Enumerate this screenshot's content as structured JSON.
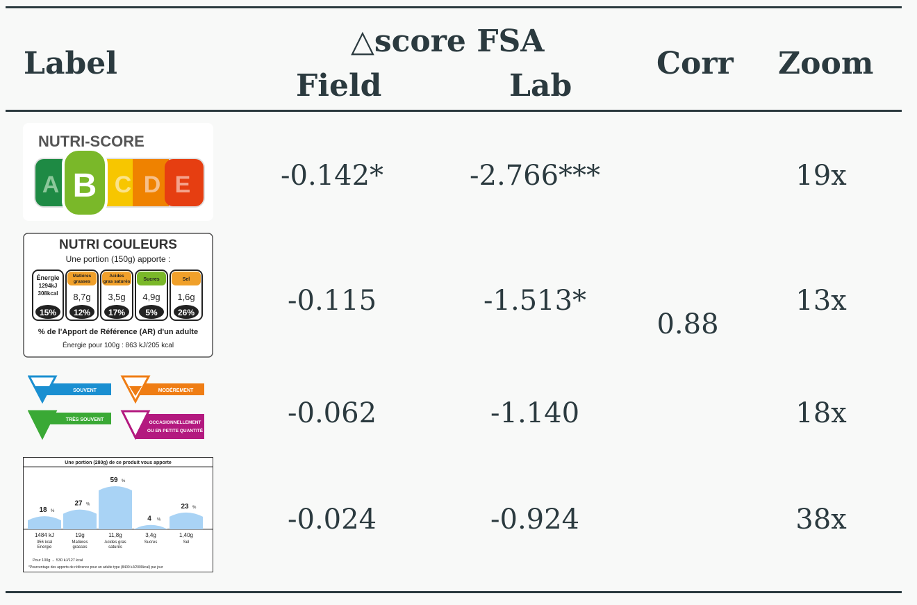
{
  "header": {
    "label": "Label",
    "group": "△score FSA",
    "field": "Field",
    "lab": "Lab",
    "corr": "Corr",
    "zoom": "Zoom"
  },
  "corr_value": "0.88",
  "rows": [
    {
      "field": "-0.142*",
      "lab": "-2.766***",
      "zoom": "19x"
    },
    {
      "field": "-0.115",
      "lab": "-1.513*",
      "zoom": "13x"
    },
    {
      "field": "-0.062",
      "lab": "-1.140",
      "zoom": "18x"
    },
    {
      "field": "-0.024",
      "lab": "-0.924",
      "zoom": "38x"
    }
  ],
  "nutriscore": {
    "title": "NUTRI-SCORE",
    "letters": [
      "A",
      "B",
      "C",
      "D",
      "E"
    ],
    "colors": [
      "#1e8a44",
      "#7ab829",
      "#f7c600",
      "#ef8200",
      "#e63e11"
    ]
  },
  "nutricouleurs": {
    "title": "NUTRI COULEURS",
    "subtitle": "Une portion (150g) apporte :",
    "energy_label": "Énergie",
    "energy_kj": "1294kJ",
    "energy_kcal": "308kcal",
    "energy_pct": "15%",
    "items": [
      {
        "name": "Matières grasses",
        "value": "8,7g",
        "pct": "12%",
        "color": "#f0a02a"
      },
      {
        "name": "Acides gras saturés",
        "value": "3,5g",
        "pct": "17%",
        "color": "#f0a02a"
      },
      {
        "name": "Sucres",
        "value": "4,9g",
        "pct": "5%",
        "color": "#7ab829"
      },
      {
        "name": "Sel",
        "value": "1,6g",
        "pct": "26%",
        "color": "#f0a02a"
      }
    ],
    "footer1": "% de l'Apport de Référence (AR) d'un adulte",
    "footer2": "Énergie pour 100g : 863 kJ/205 kcal"
  },
  "senap": {
    "souvent": "SOUVENT",
    "moderement": "MODÉREMENT",
    "tres_souvent": "TRÈS SOUVENT",
    "occasionnellement": "OCCASIONNELLEMENT",
    "petite_quantite": "OU EN PETITE QUANTITÉ",
    "colors": {
      "souvent": "#1a8fd1",
      "moderement": "#ef7d14",
      "tres_souvent": "#3aa935",
      "occasionnellement": "#b3197f"
    }
  },
  "gda": {
    "title": "Une portion (280g) de ce produit vous apporte",
    "bars": [
      {
        "pct": "18",
        "value": "1484 kJ",
        "sub1": "356 kcal",
        "sub2": "Energie",
        "level": 18
      },
      {
        "pct": "27",
        "value": "19g",
        "sub1": "Matières",
        "sub2": "grasses",
        "level": 27
      },
      {
        "pct": "59",
        "value": "11,8g",
        "sub1": "Acides gras",
        "sub2": "saturés",
        "level": 59
      },
      {
        "pct": "4",
        "value": "3,4g",
        "sub1": "Sucres",
        "sub2": "",
        "level": 4
      },
      {
        "pct": "23",
        "value": "1,40g",
        "sub1": "Sel",
        "sub2": "",
        "level": 23
      }
    ],
    "pct_unit": "%",
    "footer1": "Pour 100g → 530 kJ/127 kcal",
    "footer2": "*Pourcentage des apports de référence pour un adulte type (8400 kJ/2000kcal) par jour",
    "color": "#a9d3f5"
  }
}
